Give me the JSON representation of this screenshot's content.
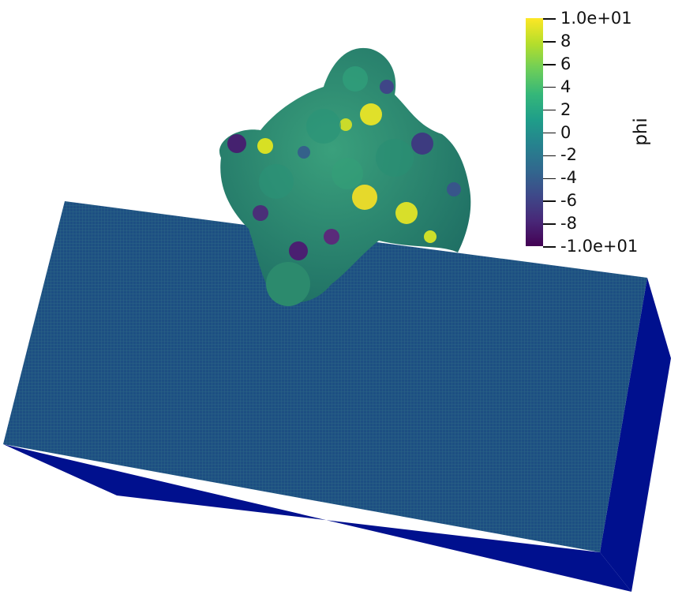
{
  "colorbar": {
    "title": "phi",
    "colormap": "viridis",
    "range": [
      -10,
      10
    ],
    "ticks": [
      "1.0e+01",
      "8",
      "6",
      "4",
      "2",
      "0",
      "-2",
      "-4",
      "-6",
      "-8",
      "-1.0e+01"
    ],
    "stops": [
      "#fde725",
      "#b5de2b",
      "#6ece58",
      "#35b779",
      "#1f9e89",
      "#26828e",
      "#31688e",
      "#3e4989",
      "#482878",
      "#440154"
    ]
  },
  "scene": {
    "box_front_color": "#1d4f82",
    "box_side_color": "#00108e",
    "molecule_base_color": "#2a8a6f"
  }
}
